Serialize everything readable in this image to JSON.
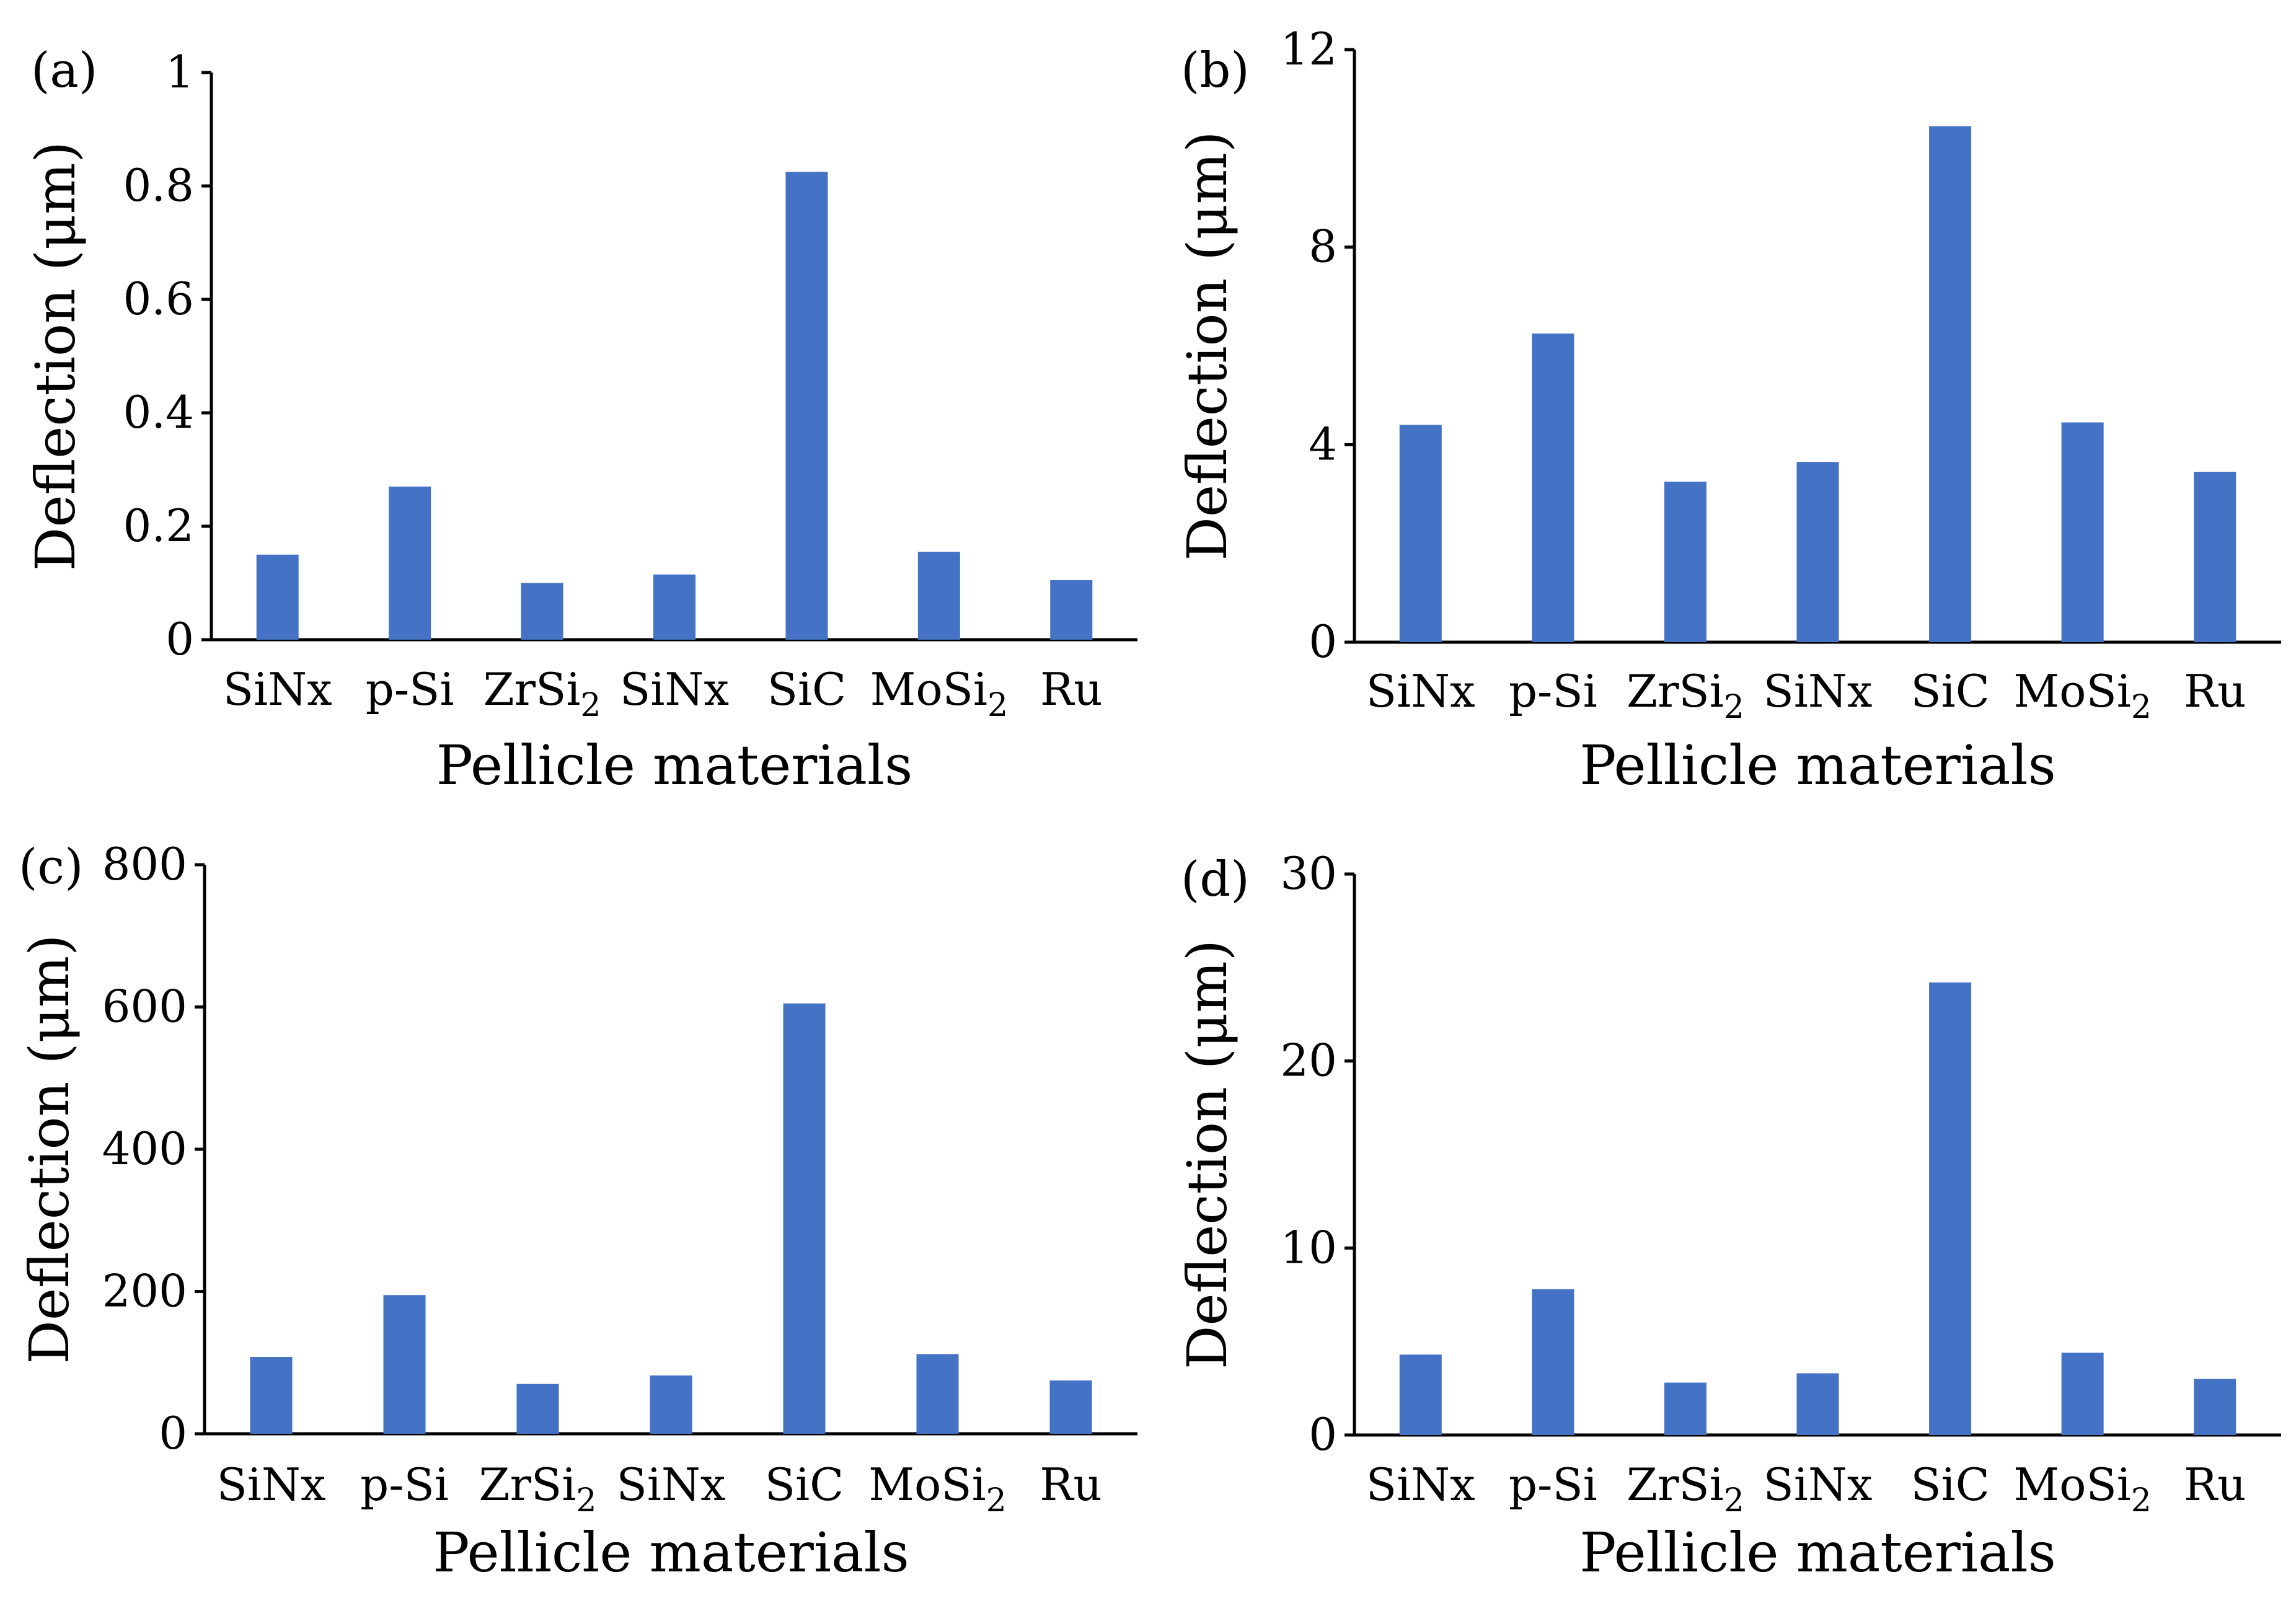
{
  "chart_data": [
    {
      "panel_label": "(a)",
      "type": "bar",
      "categories": [
        "SiNx",
        "p-Si",
        "ZrSi2",
        "SiNx",
        "SiC",
        "MoSi2",
        "Ru"
      ],
      "values": [
        0.15,
        0.27,
        0.1,
        0.115,
        0.825,
        0.155,
        0.105
      ],
      "ylabel": "Deflection (μm)",
      "xlabel": "Pellicle materials",
      "ylim": [
        0,
        1
      ],
      "yticks": [
        0,
        0.2,
        0.4,
        0.6,
        0.8,
        1
      ],
      "ytick_labels": [
        "0",
        "0.2",
        "0.4",
        "0.6",
        "0.8",
        "1"
      ],
      "color": "#4472C4"
    },
    {
      "panel_label": "(b)",
      "type": "bar",
      "categories": [
        "SiNx",
        "p-Si",
        "ZrSi2",
        "SiNx",
        "SiC",
        "MoSi2",
        "Ru"
      ],
      "values": [
        4.4,
        6.25,
        3.25,
        3.65,
        10.45,
        4.45,
        3.45
      ],
      "ylabel": "Deflection (μm)",
      "xlabel": "Pellicle materials",
      "ylim": [
        0,
        12
      ],
      "yticks": [
        0,
        4,
        8,
        12
      ],
      "ytick_labels": [
        "0",
        "4",
        "8",
        "12"
      ],
      "color": "#4472C4"
    },
    {
      "panel_label": "(c)",
      "type": "bar",
      "categories": [
        "SiNx",
        "p-Si",
        "ZrSi2",
        "SiNx",
        "SiC",
        "MoSi2",
        "Ru"
      ],
      "values": [
        108,
        195,
        70,
        82,
        605,
        112,
        75
      ],
      "ylabel": "Deflection (μm)",
      "xlabel": "Pellicle materials",
      "ylim": [
        0,
        800
      ],
      "yticks": [
        0,
        200,
        400,
        600,
        800
      ],
      "ytick_labels": [
        "0",
        "200",
        "400",
        "600",
        "800"
      ],
      "color": "#4472C4"
    },
    {
      "panel_label": "(d)",
      "type": "bar",
      "categories": [
        "SiNx",
        "p-Si",
        "ZrSi2",
        "SiNx",
        "SiC",
        "MoSi2",
        "Ru"
      ],
      "values": [
        4.3,
        7.8,
        2.8,
        3.3,
        24.2,
        4.4,
        3.0
      ],
      "ylabel": "Deflection (μm)",
      "xlabel": "Pellicle materials",
      "ylim": [
        0,
        30
      ],
      "yticks": [
        0,
        10,
        20,
        30
      ],
      "ytick_labels": [
        "0",
        "10",
        "20",
        "30"
      ],
      "color": "#4472C4"
    }
  ]
}
